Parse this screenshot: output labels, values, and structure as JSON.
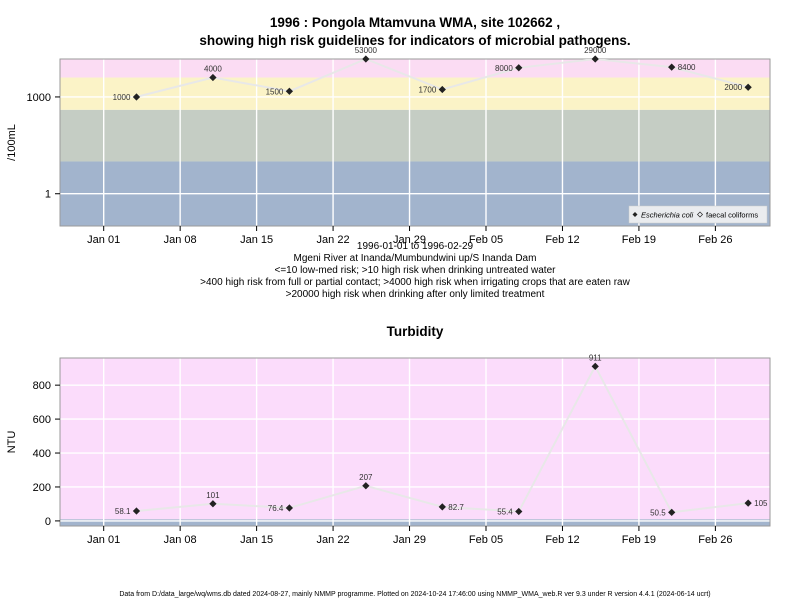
{
  "chart_data": [
    {
      "type": "line",
      "title": "1996 : Pongola Mtamvuna WMA, site 102662 ,",
      "subtitle": "showing high risk guidelines for indicators of microbial pathogens.",
      "ylabel": "/100mL",
      "yscale": "log10",
      "ylim": [
        0.1,
        15000
      ],
      "yticks": [
        {
          "value": 1,
          "label": "1"
        },
        {
          "value": 1000,
          "label": "1000"
        }
      ],
      "xlim": [
        "1995-12-28",
        "1996-03-02"
      ],
      "xticks": [
        {
          "value": "1996-01-01",
          "label": "Jan 01"
        },
        {
          "value": "1996-01-08",
          "label": "Jan 08"
        },
        {
          "value": "1996-01-15",
          "label": "Jan 15"
        },
        {
          "value": "1996-01-22",
          "label": "Jan 22"
        },
        {
          "value": "1996-01-29",
          "label": "Jan 29"
        },
        {
          "value": "1996-02-05",
          "label": "Feb 05"
        },
        {
          "value": "1996-02-12",
          "label": "Feb 12"
        },
        {
          "value": "1996-02-19",
          "label": "Feb 19"
        },
        {
          "value": "1996-02-26",
          "label": "Feb 26"
        }
      ],
      "grid": true,
      "bands": [
        {
          "from": 0.1,
          "to": 10,
          "color": "#a2b4cd"
        },
        {
          "from": 10,
          "to": 400,
          "color": "#c5cdc4"
        },
        {
          "from": 400,
          "to": 4000,
          "color": "#fbf3c7"
        },
        {
          "from": 4000,
          "to": 20000,
          "color": "#fbdcf3"
        },
        {
          "from": 20000,
          "to": 100000,
          "color": "#fbb4c7"
        }
      ],
      "series": [
        {
          "name": "Escherichia coli",
          "marker": "diamond",
          "line_color": "#e8e8e8",
          "points": [
            {
              "x": "1996-01-04",
              "y": 1000,
              "label": "1000"
            },
            {
              "x": "1996-01-11",
              "y": 4000,
              "label": "4000"
            },
            {
              "x": "1996-01-18",
              "y": 1500,
              "label": "1500"
            },
            {
              "x": "1996-01-25",
              "y": 53000,
              "label": "53000"
            },
            {
              "x": "1996-02-01",
              "y": 1700,
              "label": "1700"
            },
            {
              "x": "1996-02-08",
              "y": 8000,
              "label": "8000"
            },
            {
              "x": "1996-02-15",
              "y": 29000,
              "label": "29000"
            },
            {
              "x": "1996-02-22",
              "y": 8400,
              "label": "8400"
            },
            {
              "x": "1996-02-29",
              "y": 2000,
              "label": "2000"
            }
          ]
        },
        {
          "name": "faecal coliforms",
          "marker": "diamond-open",
          "points": []
        }
      ],
      "legend": {
        "position": "bottom-right",
        "entries": [
          "Escherichia coli",
          "faecal coliforms"
        ]
      },
      "notes": [
        "1996-01-01 to 1996-02-29",
        "Mgeni River at Inanda/Mumbundwini up/S Inanda Dam",
        "<=10 low-med risk; >10 high risk when drinking untreated water",
        ">400 high risk from full or partial contact; >4000 high risk when irrigating crops that are eaten raw",
        ">20000 high risk when drinking after only limited treatment"
      ]
    },
    {
      "type": "line",
      "title": "Turbidity",
      "ylabel": "NTU",
      "ylim": [
        -30,
        960
      ],
      "yticks": [
        {
          "value": 0,
          "label": "0"
        },
        {
          "value": 200,
          "label": "200"
        },
        {
          "value": 400,
          "label": "400"
        },
        {
          "value": 600,
          "label": "600"
        },
        {
          "value": 800,
          "label": "800"
        }
      ],
      "xlim": [
        "1995-12-28",
        "1996-03-02"
      ],
      "xticks": [
        {
          "value": "1996-01-01",
          "label": "Jan 01"
        },
        {
          "value": "1996-01-08",
          "label": "Jan 08"
        },
        {
          "value": "1996-01-15",
          "label": "Jan 15"
        },
        {
          "value": "1996-01-22",
          "label": "Jan 22"
        },
        {
          "value": "1996-01-29",
          "label": "Jan 29"
        },
        {
          "value": "1996-02-05",
          "label": "Feb 05"
        },
        {
          "value": "1996-02-12",
          "label": "Feb 12"
        },
        {
          "value": "1996-02-19",
          "label": "Feb 19"
        },
        {
          "value": "1996-02-26",
          "label": "Feb 26"
        }
      ],
      "grid": true,
      "bands": [
        {
          "from": -30,
          "to": 10,
          "color": "#a2b4cd"
        },
        {
          "from": 10,
          "to": 960,
          "color": "#fbdcfb"
        }
      ],
      "series": [
        {
          "marker": "diamond",
          "line_color": "#e8e8e8",
          "points": [
            {
              "x": "1996-01-04",
              "y": 58.1,
              "label": "58.1"
            },
            {
              "x": "1996-01-11",
              "y": 101,
              "label": "101"
            },
            {
              "x": "1996-01-18",
              "y": 76.4,
              "label": "76.4"
            },
            {
              "x": "1996-01-25",
              "y": 207,
              "label": "207"
            },
            {
              "x": "1996-02-01",
              "y": 82.7,
              "label": "82.7"
            },
            {
              "x": "1996-02-08",
              "y": 55.4,
              "label": "55.4"
            },
            {
              "x": "1996-02-15",
              "y": 911,
              "label": "911"
            },
            {
              "x": "1996-02-22",
              "y": 50.5,
              "label": "50.5"
            },
            {
              "x": "1996-02-29",
              "y": 105,
              "label": "105"
            }
          ]
        }
      ]
    }
  ],
  "footer": "Data from D:/data_large/wq/wms.db dated 2024-08-27, mainly NMMP programme. Plotted on 2024-10-24 17:46:00 using NMMP_WMA_web.R ver 9.3 under R version 4.4.1 (2024-06-14 ucrt)"
}
